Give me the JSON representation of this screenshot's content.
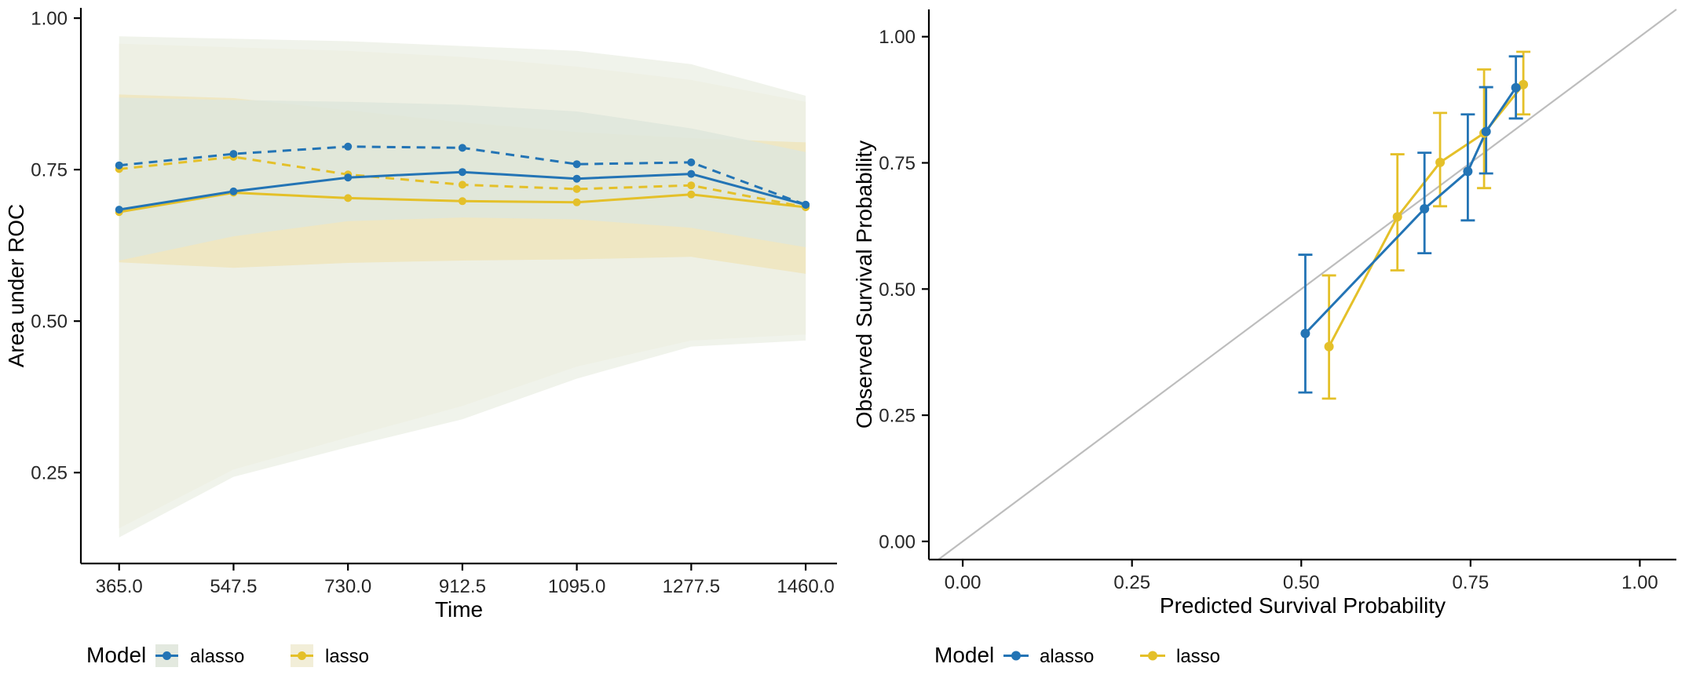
{
  "page": {
    "background": "#ffffff"
  },
  "colors": {
    "alasso": "#2374b5",
    "lasso": "#e4c029",
    "diagonal_line": "#bdbdbd",
    "axis_line": "#000000",
    "tick_text": "#262626",
    "title_text": "#000000",
    "alasso_key_bg": "#e3e9df",
    "lasso_key_bg": "#f2eed8"
  },
  "chart_data": [
    {
      "type": "line",
      "panel": "left",
      "title": "",
      "xlabel": "Time",
      "ylabel": "Area under ROC",
      "x": [
        365.0,
        547.5,
        730.0,
        912.5,
        1095.0,
        1277.5,
        1460.0
      ],
      "x_tick_labels": [
        "365.0",
        "547.5",
        "730.0",
        "912.5",
        "1095.0",
        "1277.5",
        "1460.0"
      ],
      "y_ticks": [
        0.25,
        0.5,
        0.75,
        1.0
      ],
      "y_tick_labels": [
        "0.25",
        "0.50",
        "0.75",
        "1.00"
      ],
      "xlim": [
        304,
        1510
      ],
      "ylim": [
        0.1,
        1.017
      ],
      "grid": false,
      "legend": {
        "title": "Model",
        "position": "bottom",
        "entries": [
          {
            "label": "alasso",
            "color_key": "alasso",
            "key_bg_key": "alasso_key_bg"
          },
          {
            "label": "lasso",
            "color_key": "lasso",
            "key_bg_key": "lasso_key_bg"
          }
        ]
      },
      "series": [
        {
          "name": "lasso",
          "linetype": "solid",
          "values": [
            0.68,
            0.712,
            0.703,
            0.698,
            0.696,
            0.709,
            0.688
          ]
        },
        {
          "name": "lasso",
          "linetype": "dashed",
          "values": [
            0.751,
            0.771,
            0.742,
            0.725,
            0.718,
            0.724,
            0.688
          ]
        },
        {
          "name": "alasso",
          "linetype": "solid",
          "values": [
            0.684,
            0.714,
            0.737,
            0.746,
            0.735,
            0.743,
            0.692
          ]
        },
        {
          "name": "alasso",
          "linetype": "dashed",
          "values": [
            0.757,
            0.776,
            0.788,
            0.786,
            0.759,
            0.762,
            0.692
          ]
        }
      ],
      "ribbons": [
        {
          "name": "lasso-outer",
          "fill": "#f6f1df",
          "opacity": 1.0,
          "upper": [
            0.958,
            0.952,
            0.946,
            0.936,
            0.92,
            0.898,
            0.862
          ],
          "lower": [
            0.158,
            0.255,
            0.308,
            0.36,
            0.425,
            0.468,
            0.478
          ]
        },
        {
          "name": "alasso-outer",
          "fill": "#ecf0e6",
          "opacity": 0.78,
          "upper": [
            0.97,
            0.966,
            0.962,
            0.954,
            0.946,
            0.924,
            0.872
          ],
          "lower": [
            0.143,
            0.243,
            0.292,
            0.338,
            0.405,
            0.458,
            0.468
          ]
        },
        {
          "name": "lasso-inner",
          "fill": "#efe7c3",
          "opacity": 1.0,
          "upper": [
            0.874,
            0.868,
            0.848,
            0.828,
            0.812,
            0.802,
            0.795
          ],
          "lower": [
            0.597,
            0.588,
            0.596,
            0.6,
            0.602,
            0.606,
            0.578
          ]
        },
        {
          "name": "alasso-inner",
          "fill": "#dfe7dc",
          "opacity": 0.9,
          "upper": [
            0.869,
            0.865,
            0.862,
            0.857,
            0.846,
            0.818,
            0.779
          ],
          "lower": [
            0.6,
            0.64,
            0.665,
            0.671,
            0.668,
            0.654,
            0.622
          ]
        }
      ]
    },
    {
      "type": "scatter",
      "panel": "right",
      "title": "",
      "xlabel": "Predicted Survival Probability",
      "ylabel": "Observed Survival Probability",
      "x_ticks": [
        0.0,
        0.25,
        0.5,
        0.75,
        1.0
      ],
      "x_tick_labels": [
        "0.00",
        "0.25",
        "0.50",
        "0.75",
        "1.00"
      ],
      "y_ticks": [
        0.0,
        0.25,
        0.5,
        0.75,
        1.0
      ],
      "y_tick_labels": [
        "0.00",
        "0.25",
        "0.50",
        "0.75",
        "1.00"
      ],
      "xlim": [
        -0.05,
        1.054
      ],
      "ylim": [
        -0.036,
        1.054
      ],
      "grid": false,
      "diagonal_reference_line": true,
      "legend": {
        "title": "Model",
        "position": "bottom",
        "entries": [
          {
            "label": "alasso",
            "color_key": "alasso"
          },
          {
            "label": "lasso",
            "color_key": "lasso"
          }
        ]
      },
      "series": [
        {
          "name": "lasso",
          "points": [
            {
              "x": 0.541,
              "y": 0.386,
              "lo": 0.283,
              "hi": 0.527
            },
            {
              "x": 0.642,
              "y": 0.643,
              "lo": 0.537,
              "hi": 0.767
            },
            {
              "x": 0.705,
              "y": 0.751,
              "lo": 0.664,
              "hi": 0.849
            },
            {
              "x": 0.77,
              "y": 0.809,
              "lo": 0.7,
              "hi": 0.935
            },
            {
              "x": 0.828,
              "y": 0.905,
              "lo": 0.846,
              "hi": 0.97
            }
          ]
        },
        {
          "name": "alasso",
          "points": [
            {
              "x": 0.506,
              "y": 0.412,
              "lo": 0.295,
              "hi": 0.568
            },
            {
              "x": 0.682,
              "y": 0.659,
              "lo": 0.571,
              "hi": 0.77
            },
            {
              "x": 0.746,
              "y": 0.733,
              "lo": 0.636,
              "hi": 0.846
            },
            {
              "x": 0.773,
              "y": 0.812,
              "lo": 0.729,
              "hi": 0.9
            },
            {
              "x": 0.817,
              "y": 0.899,
              "lo": 0.838,
              "hi": 0.961
            }
          ]
        }
      ]
    }
  ]
}
